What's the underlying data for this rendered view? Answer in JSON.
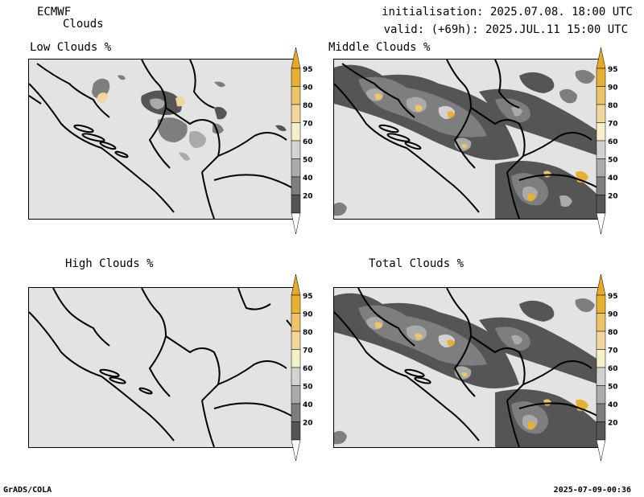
{
  "header": {
    "model": "ECMWF",
    "product": "Clouds",
    "initialisation": "initialisation: 2025.07.08. 18:00 UTC",
    "valid": "valid: (+69h): 2025.JUL.11 15:00 UTC"
  },
  "panels": [
    {
      "title": "Low Clouds %"
    },
    {
      "title": "Middle Clouds %"
    },
    {
      "title": "High Clouds %"
    },
    {
      "title": "Total Clouds %"
    }
  ],
  "colorbar": {
    "labels": [
      "95",
      "90",
      "80",
      "70",
      "60",
      "50",
      "40",
      "20"
    ],
    "colors": [
      "#e8b030",
      "#eec468",
      "#f1d59b",
      "#f4f0c8",
      "#d2d2d2",
      "#aaaaaa",
      "#7e7e7e",
      "#555555"
    ],
    "top_color": "#e8a828",
    "bottom_color": "#ffffff"
  },
  "footer": {
    "left": "GrADS/COLA",
    "right": "2025-07-09-00:36"
  }
}
